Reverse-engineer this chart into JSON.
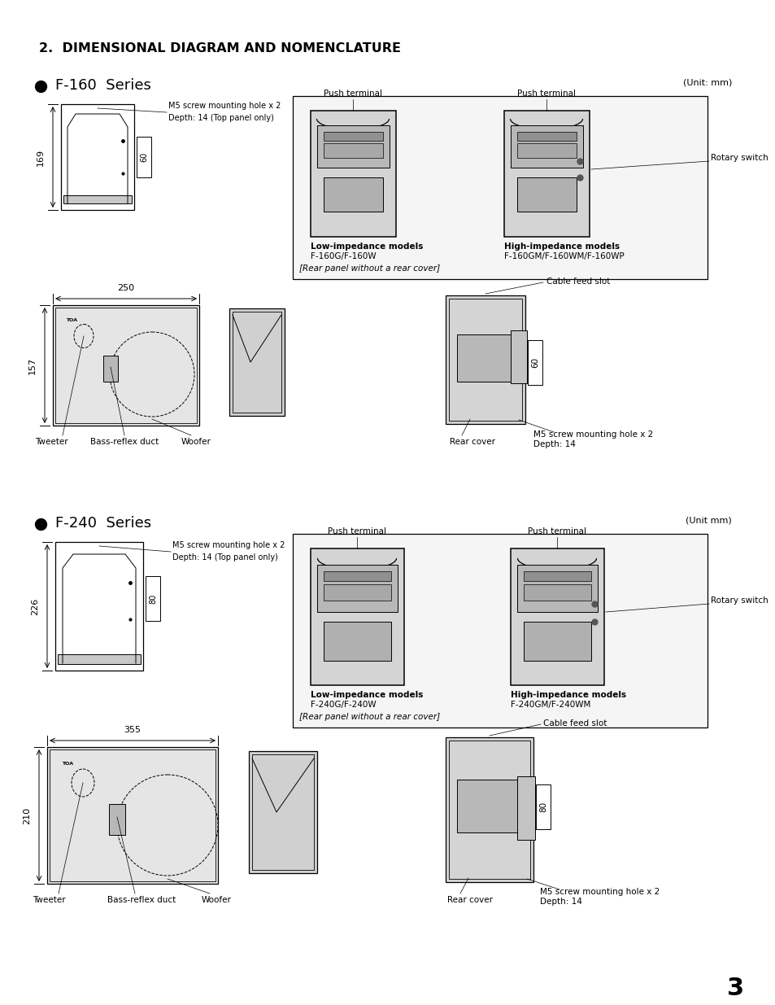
{
  "title": "2.  DIMENSIONAL DIAGRAM AND NOMENCLATURE",
  "background_color": "#ffffff",
  "page_number": "3",
  "f160": {
    "series_label": "F-160  Series",
    "unit_label": "(Unit: mm)",
    "annotations_side": [
      "M5 screw mounting hole x 2",
      "Depth: 14 (Top panel only)"
    ],
    "low_imp_label1": "Low-impedance models",
    "low_imp_label2": "F-160G/F-160W",
    "high_imp_label1": "High-impedance models",
    "high_imp_label2": "F-160GM/F-160WM/F-160WP",
    "rotary_switch": "Rotary switch",
    "rear_note": "[Rear panel without a rear cover]",
    "push_terminal": "Push terminal",
    "front_labels": [
      "Tweeter",
      "Bass-reflex duct",
      "Woofer"
    ],
    "cable_feed": "Cable feed slot",
    "rear_cover": "Rear cover",
    "m5_label1": "M5 screw mounting hole x 2",
    "depth14": "Depth: 14",
    "dim_w": "250",
    "dim_h": "157",
    "dim_side_h": "169",
    "dim_depth": "60"
  },
  "f240": {
    "series_label": "F-240  Series",
    "unit_label": "(Unit mm)",
    "annotations_side": [
      "M5 screw mounting hole x 2",
      "Depth: 14 (Top panel only)"
    ],
    "low_imp_label1": "Low-impedance models",
    "low_imp_label2": "F-240G/F-240W",
    "high_imp_label1": "High-impedance models",
    "high_imp_label2": "F-240GM/F-240WM",
    "rotary_switch": "Rotary switch",
    "rear_note": "[Rear panel without a rear cover]",
    "push_terminal": "Push terminal",
    "front_labels": [
      "Tweeter",
      "Bass-reflex duct",
      "Woofer"
    ],
    "cable_feed": "Cable feed slot",
    "rear_cover": "Rear cover",
    "m5_label1": "M5 screw mounting hole x 2",
    "depth14": "Depth: 14",
    "dim_w": "355",
    "dim_h": "210",
    "dim_side_h": "226",
    "dim_depth": "80"
  }
}
